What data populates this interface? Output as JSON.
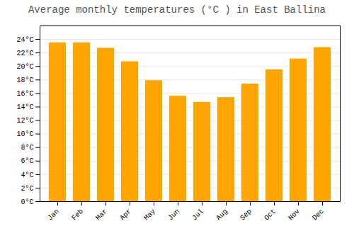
{
  "chart_data": {
    "type": "bar",
    "title": "Average monthly temperatures (°C ) in East Ballina",
    "categories": [
      "Jan",
      "Feb",
      "Mar",
      "Apr",
      "May",
      "Jun",
      "Jul",
      "Aug",
      "Sep",
      "Oct",
      "Nov",
      "Dec"
    ],
    "values": [
      23.5,
      23.5,
      22.7,
      20.7,
      17.9,
      15.6,
      14.7,
      15.4,
      17.4,
      19.5,
      21.1,
      22.8
    ],
    "color": "#FFA500",
    "ylim": [
      0,
      26
    ],
    "yticks": [
      {
        "value": 0,
        "label": "0°C"
      },
      {
        "value": 2,
        "label": "2°C"
      },
      {
        "value": 4,
        "label": "4°C"
      },
      {
        "value": 6,
        "label": "6°C"
      },
      {
        "value": 8,
        "label": "8°C"
      },
      {
        "value": 10,
        "label": "10°C"
      },
      {
        "value": 12,
        "label": "12°C"
      },
      {
        "value": 14,
        "label": "14°C"
      },
      {
        "value": 16,
        "label": "16°C"
      },
      {
        "value": 18,
        "label": "18°C"
      },
      {
        "value": 20,
        "label": "20°C"
      },
      {
        "value": 22,
        "label": "22°C"
      },
      {
        "value": 24,
        "label": "24°C"
      }
    ],
    "grid": true
  }
}
